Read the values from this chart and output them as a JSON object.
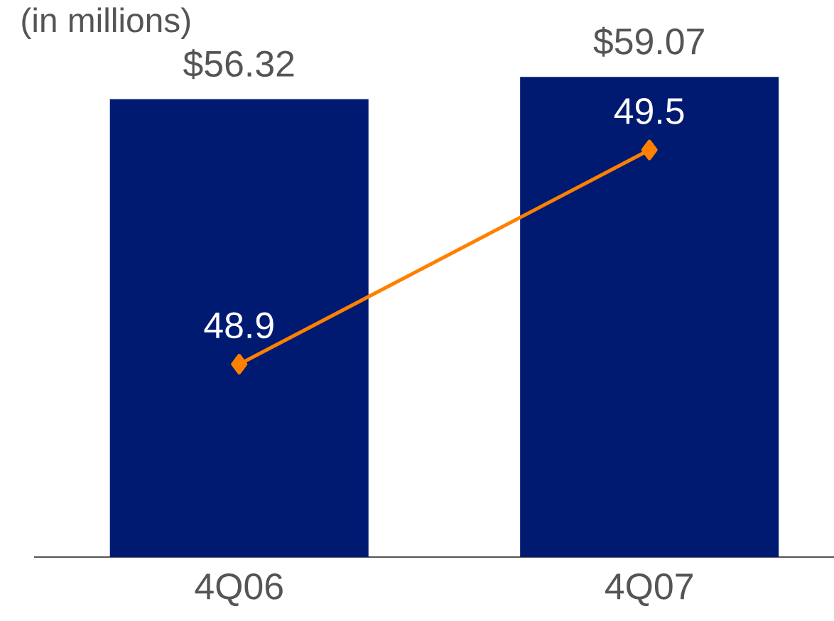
{
  "chart_data": {
    "type": "bar",
    "title": "(in millions)",
    "categories": [
      "4Q06",
      "4Q07"
    ],
    "series": [
      {
        "color": "#001a72",
        "values": [
          56.32,
          59.07
        ],
        "value_labels": [
          "$56.32",
          "$59.07"
        ]
      },
      {
        "type": "line",
        "axis": "y2",
        "color": "#ff8000",
        "marker": "diamond",
        "values": [
          48.9,
          49.5
        ],
        "value_labels": [
          "48.9",
          "49.5"
        ]
      }
    ]
  }
}
